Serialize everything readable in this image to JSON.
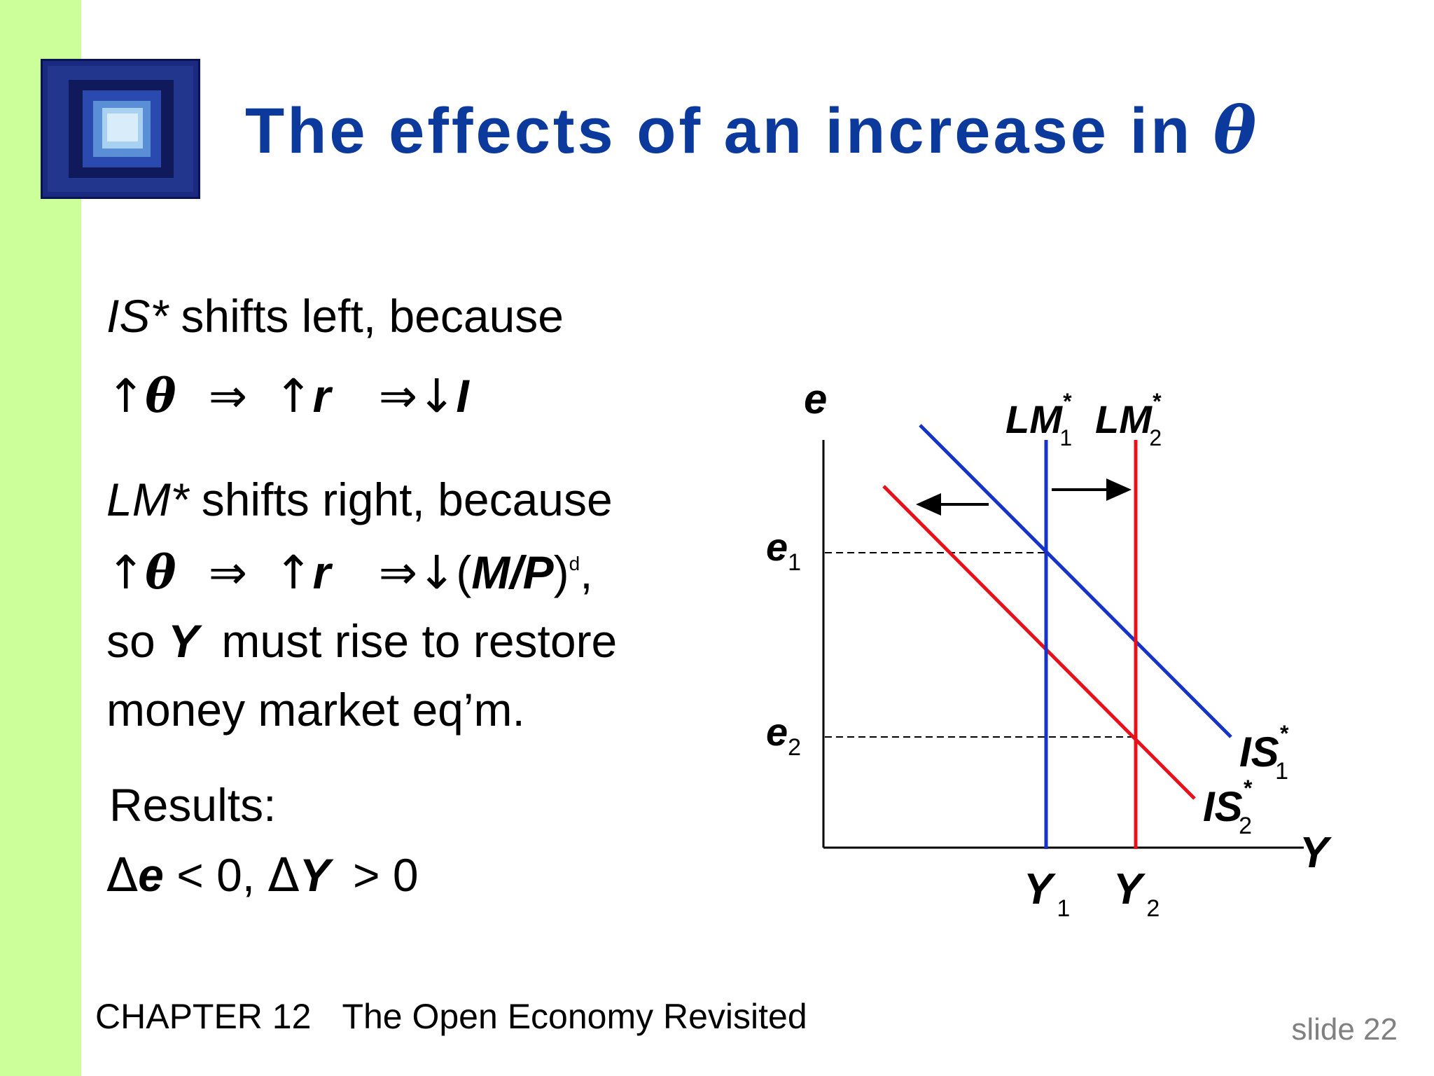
{
  "slide": {
    "title": "The effects of an increase in ",
    "title_symbol": "θ",
    "footer_chapter": "CHAPTER 12",
    "footer_title": "The Open Economy Revisited",
    "slide_number": "slide 22"
  },
  "text": {
    "is_heading_italic": "IS*",
    "is_heading_rest": " shifts left, because",
    "arrow_up": "↑",
    "implies": "⇒",
    "arrow_down": "↓",
    "theta": "θ",
    "r": "r",
    "I": "I",
    "lm_heading_italic": "LM*",
    "lm_heading_rest": " shifts right, because",
    "money_open": "(",
    "money_bold": "M/P",
    "money_close": ")",
    "money_sup": "d",
    "money_comma": ",",
    "so": "so ",
    "Y": "Y",
    "must_rise": " must rise to restore",
    "money_market": "money market eq’m.",
    "results": "Results:",
    "delta": "Δ",
    "e": "e",
    "lt_zero": " < 0,  ",
    "gt_zero": " > 0"
  },
  "diagram": {
    "axis_y_label": "e",
    "axis_x_label": "Y",
    "e_levels": [
      {
        "name": "e",
        "sub": "1"
      },
      {
        "name": "e",
        "sub": "2"
      }
    ],
    "lm_curves": [
      {
        "name": "LM",
        "sup": "*",
        "sub": "1",
        "color": "#1533c8",
        "at_output": "Y1"
      },
      {
        "name": "LM",
        "sup": "*",
        "sub": "2",
        "color": "#e8101a",
        "at_output": "Y2"
      }
    ],
    "is_curves": [
      {
        "name": "IS",
        "sup": "*",
        "sub": "1",
        "color": "#1533c8"
      },
      {
        "name": "IS",
        "sup": "*",
        "sub": "2",
        "color": "#e8101a"
      }
    ],
    "y_levels": [
      {
        "name": "Y",
        "sub": "1"
      },
      {
        "name": "Y",
        "sub": "2"
      }
    ],
    "shift_arrows": [
      {
        "curve": "IS*",
        "direction": "left"
      },
      {
        "curve": "LM*",
        "direction": "right"
      }
    ]
  }
}
